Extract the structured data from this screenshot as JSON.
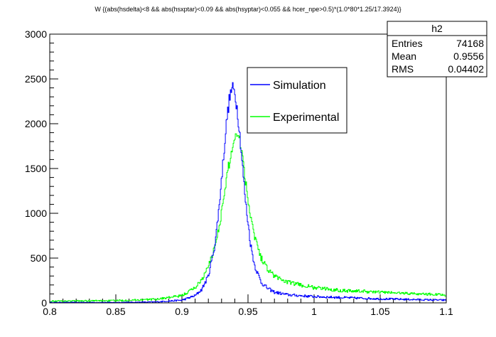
{
  "chart_data": {
    "type": "line",
    "title": "W {(abs(hsdelta)<8 && abs(hsxptar)<0.09 && abs(hsyptar)<0.055 && hcer_npe>0.5)*(1.0*80*1.25/17.3924)}",
    "xlabel": "",
    "ylabel": "",
    "xlim": [
      0.8,
      1.1
    ],
    "ylim": [
      0,
      3000
    ],
    "xticks": [
      "0.8",
      "0.85",
      "0.9",
      "0.95",
      "1",
      "1.05",
      "1.1"
    ],
    "yticks": [
      "0",
      "500",
      "1000",
      "1500",
      "2000",
      "2500",
      "3000"
    ],
    "legend": {
      "position": "top-right",
      "entries": [
        {
          "name": "Simulation",
          "color": "#0000ff"
        },
        {
          "name": "Experimental",
          "color": "#00ff00"
        }
      ]
    },
    "stats": {
      "title": "h2",
      "rows": [
        {
          "label": "Entries",
          "value": "74168"
        },
        {
          "label": "Mean",
          "value": "0.9556"
        },
        {
          "label": "RMS",
          "value": "0.04402"
        }
      ]
    },
    "series": [
      {
        "name": "Simulation",
        "color": "#0000ff",
        "x": [
          0.8,
          0.85,
          0.88,
          0.9,
          0.91,
          0.915,
          0.92,
          0.925,
          0.928,
          0.931,
          0.934,
          0.936,
          0.938,
          0.94,
          0.942,
          0.944,
          0.946,
          0.948,
          0.95,
          0.952,
          0.955,
          0.96,
          0.965,
          0.97,
          0.98,
          1.0,
          1.05,
          1.1
        ],
        "values": [
          5,
          5,
          10,
          30,
          80,
          150,
          300,
          650,
          1050,
          1550,
          2050,
          2280,
          2400,
          2350,
          2150,
          1850,
          1500,
          1150,
          900,
          650,
          420,
          230,
          160,
          120,
          90,
          70,
          45,
          30
        ]
      },
      {
        "name": "Experimental",
        "color": "#00ff00",
        "x": [
          0.8,
          0.85,
          0.88,
          0.9,
          0.91,
          0.915,
          0.92,
          0.925,
          0.93,
          0.935,
          0.94,
          0.943,
          0.946,
          0.95,
          0.955,
          0.96,
          0.965,
          0.97,
          0.98,
          1.0,
          1.02,
          1.05,
          1.08,
          1.1
        ],
        "values": [
          20,
          25,
          40,
          80,
          170,
          260,
          400,
          630,
          1000,
          1500,
          1850,
          1920,
          1620,
          1150,
          750,
          500,
          380,
          300,
          230,
          170,
          140,
          120,
          100,
          90
        ]
      }
    ]
  }
}
